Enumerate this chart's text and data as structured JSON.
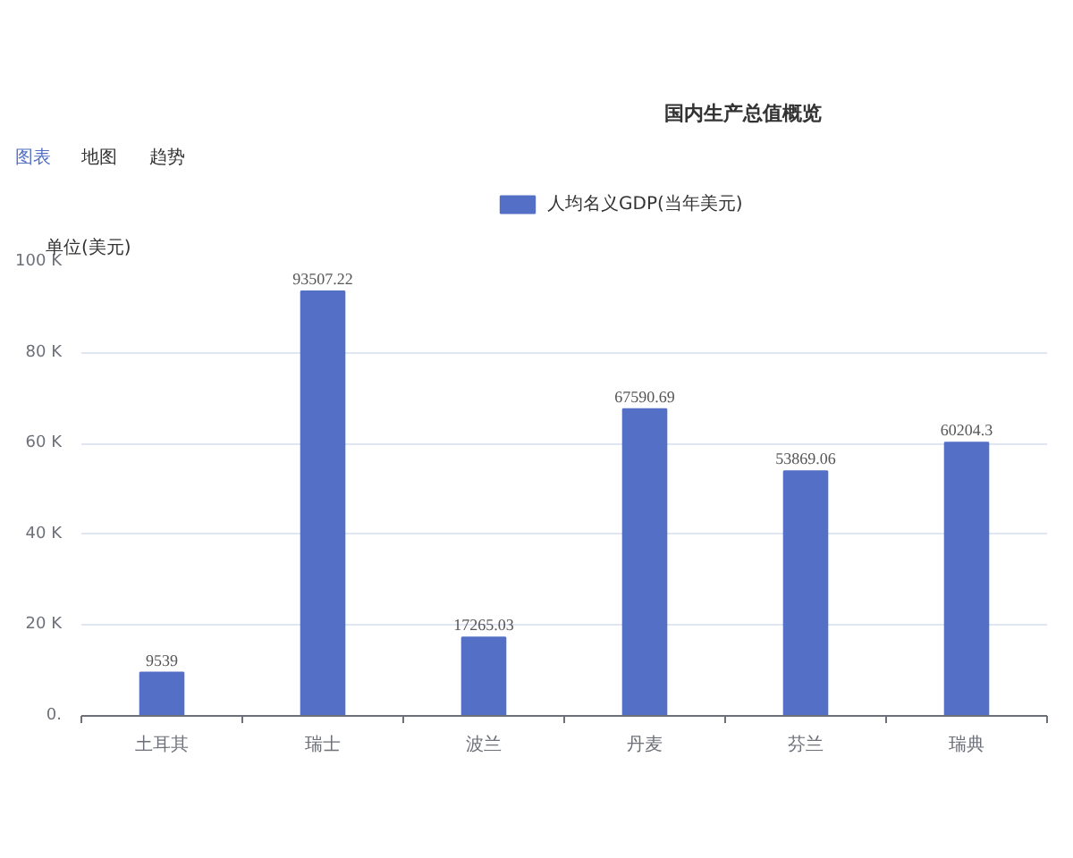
{
  "chart_data": {
    "type": "bar",
    "title": "国内生产总值概览",
    "ylabel": "单位(美元)",
    "annotations": [
      "图表",
      "地图",
      "趋势"
    ],
    "categories": [
      "土耳其",
      "瑞士",
      "波兰",
      "丹麦",
      "芬兰",
      "瑞典"
    ],
    "series": [
      {
        "name": "人均名义GDP(当年美元)",
        "color": "#5470c6",
        "values": [
          9539,
          93507.22,
          17265.03,
          67590.69,
          53869.06,
          60204.3
        ]
      }
    ],
    "ylim": [
      0,
      100000
    ],
    "yticks": [
      {
        "value": 0,
        "label": "0."
      },
      {
        "value": 20000,
        "label": "20 K"
      },
      {
        "value": 40000,
        "label": "40 K"
      },
      {
        "value": 60000,
        "label": "60 K"
      },
      {
        "value": 80000,
        "label": "80 K"
      },
      {
        "value": 100000,
        "label": "100 K"
      }
    ],
    "data_labels": true,
    "grid": "y",
    "legend": "top"
  }
}
